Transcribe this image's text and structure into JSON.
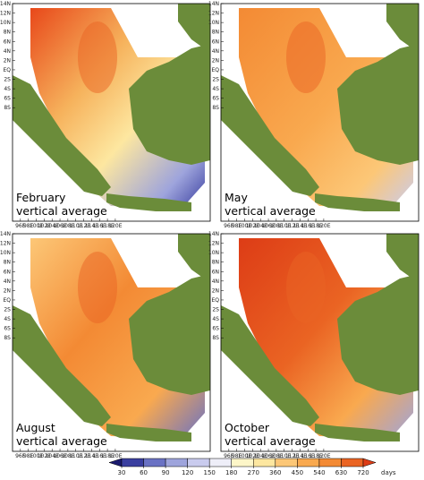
{
  "panels": [
    {
      "month": "February",
      "caption": "vertical average"
    },
    {
      "month": "May",
      "caption": "vertical average"
    },
    {
      "month": "August",
      "caption": "vertical average"
    },
    {
      "month": "October",
      "caption": "vertical average"
    }
  ],
  "lat_labels": [
    "14N",
    "12N",
    "10N",
    "8N",
    "6N",
    "4N",
    "2N",
    "EQ",
    "2S",
    "4S",
    "6S",
    "8S"
  ],
  "lon_labels": [
    "96E",
    "98E",
    "100E",
    "102E",
    "104E",
    "106E",
    "108E",
    "110E",
    "112E",
    "114E",
    "116E",
    "118E",
    "120E"
  ],
  "colorbar": {
    "ticks": [
      30,
      60,
      90,
      120,
      150,
      180,
      270,
      360,
      450,
      540,
      630,
      720
    ],
    "unit": "days",
    "colors": [
      "#1a1a6e",
      "#3a3fa0",
      "#6a72c4",
      "#9ea4dc",
      "#c9cbee",
      "#eeeef8",
      "#fdf6c8",
      "#fde7a0",
      "#fcc777",
      "#f9a94f",
      "#f38a34",
      "#ea6423",
      "#dd3c16"
    ]
  }
}
